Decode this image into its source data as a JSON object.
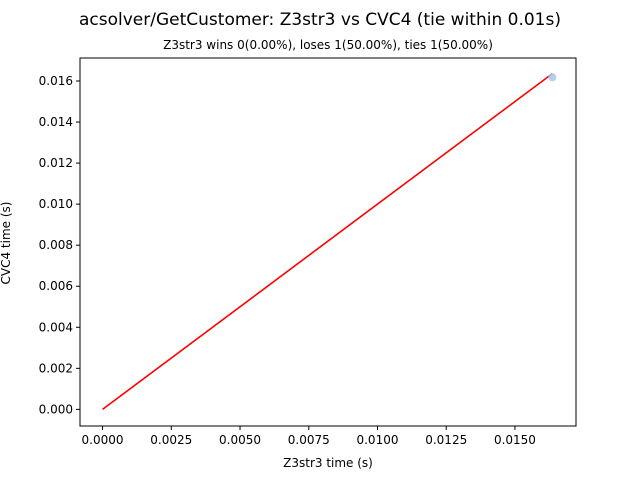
{
  "chart_data": {
    "type": "scatter",
    "title": "acsolver/GetCustomer: Z3str3 vs CVC4 (tie within 0.01s)",
    "subtitle": "Z3str3 wins 0(0.00%), loses 1(50.00%), ties 1(50.00%)",
    "xlabel": "Z3str3 time (s)",
    "ylabel": "CVC4 time (s)",
    "xlim": [
      -0.00082,
      0.01722
    ],
    "ylim": [
      -0.00081,
      0.01712
    ],
    "xticks": [
      "0.0000",
      "0.0025",
      "0.0050",
      "0.0075",
      "0.0100",
      "0.0125",
      "0.0150"
    ],
    "xtick_values": [
      0,
      0.0025,
      0.005,
      0.0075,
      0.01,
      0.0125,
      0.015
    ],
    "yticks": [
      "0.000",
      "0.002",
      "0.004",
      "0.006",
      "0.008",
      "0.010",
      "0.012",
      "0.014",
      "0.016"
    ],
    "ytick_values": [
      0,
      0.002,
      0.004,
      0.006,
      0.008,
      0.01,
      0.012,
      0.014,
      0.016
    ],
    "grid": false,
    "points": [
      {
        "x": 0.01636,
        "y": 0.01618
      }
    ],
    "reference_line": {
      "x": [
        0,
        0.01636
      ],
      "y": [
        0,
        0.01636
      ],
      "color": "#ff0000"
    },
    "point_color": "#a6c8e8"
  }
}
